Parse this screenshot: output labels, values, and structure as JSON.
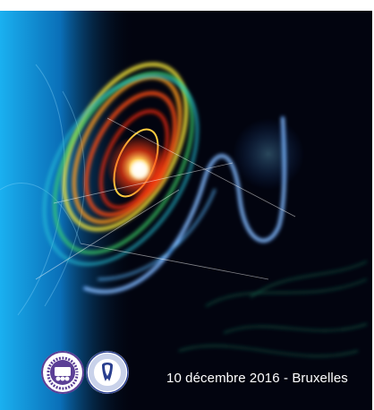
{
  "event": {
    "date_location": "10 décembre 2016 - Bruxelles"
  },
  "logos": {
    "formation_continue": {
      "text": "FORMATION CONTINUE",
      "color": "#5b3f96"
    },
    "societe_medecine_dentaire": {
      "text": "SOCIÉTÉ DE MÉDECINE DENTAIRE",
      "color": "#2a3f8f"
    }
  },
  "colors": {
    "background": "#02040f",
    "cyan_band": "#12a6ea",
    "text": "#ffffff"
  }
}
